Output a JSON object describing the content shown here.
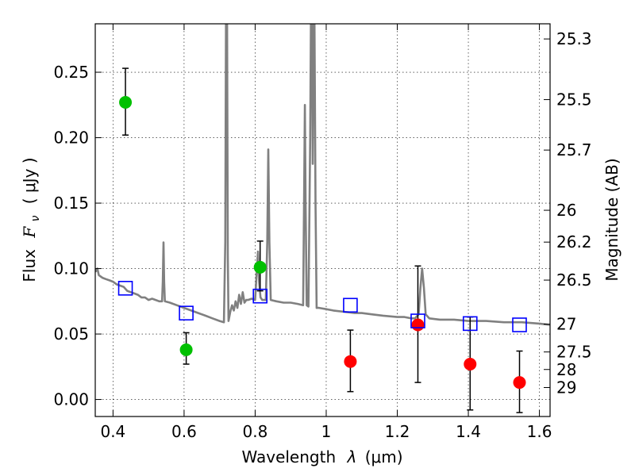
{
  "chart_data": {
    "type": "scatter",
    "title": "",
    "xlabel_prefix": "Wavelength",
    "xlabel_symbol": "λ",
    "xlabel_unit": "(μm)",
    "ylabel_prefix": "Flux",
    "ylabel_symbol": "F",
    "ylabel_subscript": "ν",
    "ylabel_unit": "( μJy )",
    "y2label": "Magnitude (AB)",
    "xlim": [
      0.35,
      1.63
    ],
    "ylim": [
      -0.013,
      0.287
    ],
    "x_ticks": [
      0.4,
      0.6,
      0.8,
      1.0,
      1.2,
      1.4,
      1.6
    ],
    "x_tick_labels": [
      "0.4",
      "0.6",
      "0.8",
      "1",
      "1.2",
      "1.4",
      "1.6"
    ],
    "y_ticks": [
      0.0,
      0.05,
      0.1,
      0.15,
      0.2,
      0.25
    ],
    "y_tick_labels": [
      "0.00",
      "0.05",
      "0.10",
      "0.15",
      "0.20",
      "0.25"
    ],
    "mag_ticks": [
      25.3,
      25.5,
      25.7,
      26,
      26.2,
      26.5,
      27,
      27.5,
      28,
      29
    ],
    "mag_tick_labels": [
      "25.3",
      "25.5",
      "25.7",
      "26",
      "26.2",
      "26.5",
      "27",
      "27.5",
      "28",
      "29"
    ],
    "grid": true,
    "colors": {
      "green": "#00c000",
      "red": "#ff0000",
      "blue": "#0000ff",
      "model": "#808080"
    },
    "series": [
      {
        "marker": "circle",
        "color": "green",
        "points": [
          {
            "x": 0.435,
            "y": 0.227,
            "err_lo": 0.025,
            "err_hi": 0.026
          },
          {
            "x": 0.606,
            "y": 0.038,
            "err_lo": 0.011,
            "err_hi": 0.013
          },
          {
            "x": 0.814,
            "y": 0.101,
            "err_lo": 0.018,
            "err_hi": 0.02
          }
        ]
      },
      {
        "marker": "circle",
        "color": "red",
        "points": [
          {
            "x": 1.068,
            "y": 0.029,
            "err_lo": 0.023,
            "err_hi": 0.024
          },
          {
            "x": 1.258,
            "y": 0.057,
            "err_lo": 0.044,
            "err_hi": 0.045
          },
          {
            "x": 1.405,
            "y": 0.027,
            "err_lo": 0.035,
            "err_hi": 0.036
          },
          {
            "x": 1.544,
            "y": 0.013,
            "err_lo": 0.023,
            "err_hi": 0.024
          }
        ]
      },
      {
        "marker": "open-square",
        "color": "blue",
        "points": [
          {
            "x": 0.435,
            "y": 0.085
          },
          {
            "x": 0.606,
            "y": 0.066
          },
          {
            "x": 0.814,
            "y": 0.079
          },
          {
            "x": 1.068,
            "y": 0.072
          },
          {
            "x": 1.258,
            "y": 0.06
          },
          {
            "x": 1.405,
            "y": 0.058
          },
          {
            "x": 1.544,
            "y": 0.057
          }
        ]
      }
    ],
    "model_spectrum": {
      "color": "model",
      "points": [
        [
          0.35,
          0.1
        ],
        [
          0.352,
          0.098
        ],
        [
          0.356,
          0.1
        ],
        [
          0.36,
          0.095
        ],
        [
          0.37,
          0.093
        ],
        [
          0.38,
          0.092
        ],
        [
          0.39,
          0.091
        ],
        [
          0.4,
          0.09
        ],
        [
          0.41,
          0.088
        ],
        [
          0.42,
          0.087
        ],
        [
          0.43,
          0.086
        ],
        [
          0.44,
          0.083
        ],
        [
          0.45,
          0.082
        ],
        [
          0.46,
          0.081
        ],
        [
          0.47,
          0.08
        ],
        [
          0.48,
          0.078
        ],
        [
          0.49,
          0.078
        ],
        [
          0.5,
          0.076
        ],
        [
          0.51,
          0.077
        ],
        [
          0.52,
          0.076
        ],
        [
          0.53,
          0.075
        ],
        [
          0.538,
          0.075
        ],
        [
          0.54,
          0.09
        ],
        [
          0.542,
          0.12
        ],
        [
          0.544,
          0.09
        ],
        [
          0.546,
          0.075
        ],
        [
          0.56,
          0.074
        ],
        [
          0.58,
          0.072
        ],
        [
          0.6,
          0.07
        ],
        [
          0.62,
          0.068
        ],
        [
          0.64,
          0.066
        ],
        [
          0.66,
          0.064
        ],
        [
          0.68,
          0.062
        ],
        [
          0.7,
          0.06
        ],
        [
          0.712,
          0.059
        ],
        [
          0.716,
          0.12
        ],
        [
          0.718,
          0.287
        ],
        [
          0.721,
          0.287
        ],
        [
          0.723,
          0.11
        ],
        [
          0.725,
          0.06
        ],
        [
          0.73,
          0.067
        ],
        [
          0.735,
          0.072
        ],
        [
          0.74,
          0.068
        ],
        [
          0.745,
          0.075
        ],
        [
          0.75,
          0.07
        ],
        [
          0.755,
          0.08
        ],
        [
          0.76,
          0.073
        ],
        [
          0.765,
          0.082
        ],
        [
          0.77,
          0.074
        ],
        [
          0.775,
          0.076
        ],
        [
          0.78,
          0.076
        ],
        [
          0.79,
          0.077
        ],
        [
          0.8,
          0.076
        ],
        [
          0.805,
          0.1
        ],
        [
          0.808,
          0.113
        ],
        [
          0.811,
          0.09
        ],
        [
          0.815,
          0.078
        ],
        [
          0.82,
          0.076
        ],
        [
          0.83,
          0.076
        ],
        [
          0.834,
          0.12
        ],
        [
          0.837,
          0.191
        ],
        [
          0.84,
          0.12
        ],
        [
          0.844,
          0.076
        ],
        [
          0.86,
          0.075
        ],
        [
          0.88,
          0.074
        ],
        [
          0.9,
          0.074
        ],
        [
          0.92,
          0.073
        ],
        [
          0.935,
          0.072
        ],
        [
          0.938,
          0.16
        ],
        [
          0.94,
          0.225
        ],
        [
          0.942,
          0.15
        ],
        [
          0.945,
          0.072
        ],
        [
          0.95,
          0.071
        ],
        [
          0.955,
          0.2
        ],
        [
          0.957,
          0.287
        ],
        [
          0.96,
          0.287
        ],
        [
          0.962,
          0.18
        ],
        [
          0.964,
          0.287
        ],
        [
          0.967,
          0.287
        ],
        [
          0.97,
          0.15
        ],
        [
          0.973,
          0.07
        ],
        [
          0.98,
          0.07
        ],
        [
          1.0,
          0.069
        ],
        [
          1.02,
          0.068
        ],
        [
          1.05,
          0.067
        ],
        [
          1.08,
          0.066
        ],
        [
          1.1,
          0.066
        ],
        [
          1.13,
          0.065
        ],
        [
          1.16,
          0.064
        ],
        [
          1.2,
          0.063
        ],
        [
          1.22,
          0.063
        ],
        [
          1.24,
          0.062
        ],
        [
          1.25,
          0.062
        ],
        [
          1.26,
          0.065
        ],
        [
          1.265,
          0.085
        ],
        [
          1.27,
          0.1
        ],
        [
          1.275,
          0.085
        ],
        [
          1.28,
          0.065
        ],
        [
          1.29,
          0.062
        ],
        [
          1.32,
          0.061
        ],
        [
          1.36,
          0.061
        ],
        [
          1.4,
          0.06
        ],
        [
          1.45,
          0.06
        ],
        [
          1.5,
          0.059
        ],
        [
          1.55,
          0.059
        ],
        [
          1.6,
          0.058
        ],
        [
          1.63,
          0.057
        ]
      ]
    }
  }
}
